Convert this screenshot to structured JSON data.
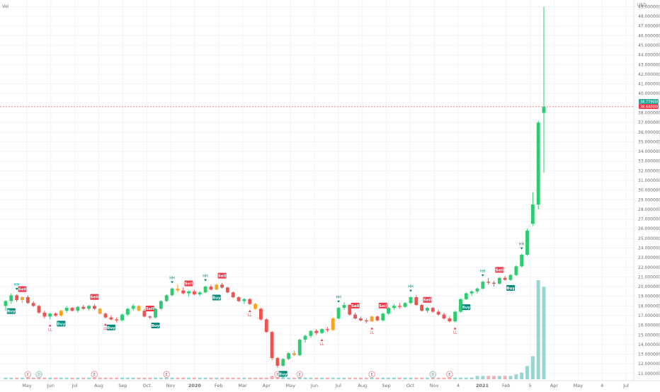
{
  "header": {
    "vol_label": "Vol"
  },
  "price_axis": {
    "currency": "USD",
    "labels": [
      "11.000000",
      "12.000000",
      "13.000000",
      "14.000000",
      "15.000000",
      "16.000000",
      "17.000000",
      "18.000000",
      "19.000000",
      "20.000000",
      "21.000000",
      "22.000000",
      "23.000000",
      "24.000000",
      "25.000000",
      "26.000000",
      "27.000000",
      "28.000000",
      "29.000000",
      "30.000000",
      "31.000000",
      "32.000000",
      "33.000000",
      "34.000000",
      "35.000000",
      "36.000000",
      "37.000000",
      "38.000000",
      "40.000000",
      "41.000000",
      "42.000000",
      "43.000000",
      "44.000000",
      "45.000000",
      "46.000000",
      "47.000000",
      "48.000000",
      "49.000000"
    ],
    "last_price_label": "38.640000",
    "last_price_top_label": "38.779000",
    "last_price_color": "#f23645",
    "top_price_color": "#26a69a"
  },
  "time_axis": {
    "labels": [
      "May",
      "Jun",
      "Jul",
      "Aug",
      "Sep",
      "Oct",
      "Nov",
      "2020",
      "Feb",
      "Mar",
      "Apr",
      "May",
      "Jun",
      "Jul",
      "Aug",
      "Sep",
      "Oct",
      "Nov",
      "4",
      "2021",
      "Feb",
      "5",
      "Apr",
      "May",
      "4",
      "Jul"
    ]
  },
  "colors": {
    "up": "#2ecc71",
    "down": "#ef5350",
    "neutral": "#f5a623",
    "volume": "#80cbc4",
    "volume_down": "#ef9a9a",
    "buy_badge": "#00897b",
    "sell_badge": "#f23645"
  },
  "signal_labels": {
    "buy": "Buy",
    "sell": "Sell",
    "hh": "HH",
    "ll": "LL",
    "e": "E",
    "d": "D"
  },
  "chart_data": {
    "type": "candlestick",
    "ylim": [
      10.4,
      49.4
    ],
    "grid": true,
    "candles": [
      [
        18.0,
        18.6,
        17.5,
        18.5
      ],
      [
        18.5,
        19.3,
        18.2,
        19.1
      ],
      [
        19.1,
        19.2,
        18.4,
        18.6
      ],
      [
        18.6,
        19.0,
        18.3,
        18.9
      ],
      [
        18.9,
        19.1,
        18.2,
        18.3
      ],
      [
        18.3,
        18.5,
        17.9,
        18.0
      ],
      [
        18.0,
        18.1,
        17.2,
        17.3
      ],
      [
        17.3,
        17.5,
        16.7,
        16.9
      ],
      [
        16.9,
        17.3,
        16.6,
        17.2
      ],
      [
        17.2,
        17.3,
        16.9,
        17.0
      ],
      [
        17.0,
        17.6,
        16.9,
        17.5
      ],
      [
        17.5,
        18.0,
        17.3,
        17.8
      ],
      [
        17.8,
        17.9,
        17.4,
        17.5
      ],
      [
        17.5,
        18.0,
        17.3,
        17.9
      ],
      [
        17.9,
        18.1,
        17.6,
        17.7
      ],
      [
        17.7,
        18.1,
        17.5,
        18.0
      ],
      [
        18.0,
        18.2,
        17.6,
        17.7
      ],
      [
        17.7,
        17.8,
        17.1,
        17.2
      ],
      [
        17.2,
        17.3,
        16.7,
        16.8
      ],
      [
        16.8,
        17.0,
        16.5,
        16.6
      ],
      [
        16.6,
        16.8,
        16.3,
        16.5
      ],
      [
        16.5,
        17.2,
        16.4,
        17.1
      ],
      [
        17.1,
        17.8,
        17.0,
        17.7
      ],
      [
        17.7,
        18.2,
        17.5,
        18.0
      ],
      [
        18.0,
        18.1,
        17.4,
        17.5
      ],
      [
        17.5,
        17.7,
        16.8,
        16.9
      ],
      [
        16.9,
        17.0,
        16.6,
        16.8
      ],
      [
        16.8,
        17.8,
        16.7,
        17.7
      ],
      [
        17.7,
        18.6,
        17.6,
        18.5
      ],
      [
        18.5,
        19.2,
        18.4,
        19.1
      ],
      [
        19.1,
        19.9,
        19.0,
        19.8
      ],
      [
        19.8,
        20.2,
        19.4,
        19.6
      ],
      [
        19.6,
        19.9,
        19.2,
        19.3
      ],
      [
        19.3,
        19.6,
        19.0,
        19.5
      ],
      [
        19.5,
        19.7,
        19.1,
        19.2
      ],
      [
        19.2,
        19.5,
        19.0,
        19.4
      ],
      [
        19.4,
        20.1,
        19.3,
        20.0
      ],
      [
        20.0,
        20.2,
        19.6,
        19.7
      ],
      [
        19.7,
        20.3,
        19.6,
        20.2
      ],
      [
        20.2,
        20.4,
        19.8,
        19.9
      ],
      [
        19.9,
        20.0,
        19.3,
        19.4
      ],
      [
        19.4,
        19.5,
        18.8,
        18.9
      ],
      [
        18.9,
        19.0,
        18.4,
        18.5
      ],
      [
        18.5,
        18.8,
        18.2,
        18.7
      ],
      [
        18.7,
        18.8,
        18.1,
        18.2
      ],
      [
        18.2,
        18.3,
        17.6,
        17.7
      ],
      [
        17.7,
        17.8,
        16.5,
        16.6
      ],
      [
        16.6,
        16.7,
        15.2,
        15.3
      ],
      [
        15.3,
        15.4,
        12.4,
        12.6
      ],
      [
        12.6,
        12.7,
        11.6,
        11.8
      ],
      [
        11.8,
        12.6,
        11.7,
        12.5
      ],
      [
        12.5,
        13.2,
        12.4,
        13.1
      ],
      [
        13.1,
        13.4,
        12.8,
        12.9
      ],
      [
        12.9,
        14.6,
        12.8,
        14.5
      ],
      [
        14.5,
        15.0,
        14.2,
        14.9
      ],
      [
        14.9,
        15.5,
        14.7,
        15.4
      ],
      [
        15.4,
        15.6,
        15.0,
        15.2
      ],
      [
        15.2,
        15.7,
        15.1,
        15.6
      ],
      [
        15.6,
        15.8,
        15.3,
        15.5
      ],
      [
        15.5,
        16.8,
        15.4,
        16.7
      ],
      [
        16.7,
        17.9,
        16.6,
        17.8
      ],
      [
        17.8,
        18.4,
        17.6,
        18.1
      ],
      [
        18.1,
        18.2,
        17.0,
        17.1
      ],
      [
        17.1,
        17.3,
        16.6,
        16.7
      ],
      [
        16.7,
        16.9,
        16.4,
        16.5
      ],
      [
        16.5,
        16.7,
        16.2,
        16.4
      ],
      [
        16.4,
        17.0,
        16.3,
        16.9
      ],
      [
        16.9,
        17.0,
        16.4,
        16.5
      ],
      [
        16.5,
        17.3,
        16.4,
        17.2
      ],
      [
        17.2,
        17.9,
        17.1,
        17.8
      ],
      [
        17.8,
        18.2,
        17.6,
        18.0
      ],
      [
        18.0,
        18.3,
        17.7,
        17.9
      ],
      [
        17.9,
        18.4,
        17.8,
        18.3
      ],
      [
        18.3,
        19.0,
        18.2,
        18.9
      ],
      [
        18.9,
        19.1,
        18.0,
        18.1
      ],
      [
        18.1,
        18.2,
        17.4,
        17.5
      ],
      [
        17.5,
        17.9,
        17.3,
        17.8
      ],
      [
        17.8,
        17.9,
        17.3,
        17.4
      ],
      [
        17.4,
        17.6,
        17.0,
        17.1
      ],
      [
        17.1,
        17.3,
        16.6,
        16.7
      ],
      [
        16.7,
        16.9,
        16.3,
        16.4
      ],
      [
        16.4,
        17.5,
        16.3,
        17.4
      ],
      [
        17.4,
        18.8,
        17.3,
        18.7
      ],
      [
        18.7,
        19.4,
        18.6,
        19.3
      ],
      [
        19.3,
        19.6,
        19.0,
        19.5
      ],
      [
        19.5,
        19.9,
        19.3,
        19.8
      ],
      [
        19.8,
        20.6,
        19.7,
        20.5
      ],
      [
        20.5,
        20.9,
        20.2,
        20.4
      ],
      [
        20.4,
        20.6,
        20.0,
        20.3
      ],
      [
        20.3,
        21.0,
        20.2,
        20.9
      ],
      [
        20.9,
        21.1,
        20.6,
        20.7
      ],
      [
        20.7,
        21.3,
        20.6,
        21.2
      ],
      [
        21.2,
        22.2,
        21.1,
        22.1
      ],
      [
        22.1,
        23.4,
        22.0,
        23.3
      ],
      [
        23.3,
        26.0,
        23.2,
        25.8
      ],
      [
        26.5,
        29.8,
        26.3,
        28.5
      ],
      [
        28.5,
        37.2,
        28.0,
        37.0
      ],
      [
        38.0,
        49.0,
        31.8,
        38.64
      ]
    ],
    "volume": [
      1,
      1,
      1,
      1,
      1,
      1,
      1,
      1,
      1,
      1,
      1,
      1,
      1,
      1,
      1,
      1,
      1,
      1,
      1,
      1,
      1,
      1,
      1,
      1,
      1,
      1,
      1,
      1,
      1,
      1,
      1,
      1,
      1,
      1,
      1,
      1,
      1,
      1,
      1,
      1,
      1,
      1,
      1,
      1,
      1,
      1,
      1,
      1,
      2,
      2,
      2,
      1,
      1,
      2,
      1,
      1,
      1,
      1,
      1,
      1,
      1,
      1,
      1,
      1,
      1,
      1,
      1,
      1,
      1,
      1,
      1,
      1,
      1,
      1,
      1,
      1,
      1,
      1,
      1,
      1,
      1,
      1,
      1,
      1,
      1,
      2,
      2,
      2,
      2,
      2,
      2,
      2,
      3,
      4,
      8,
      14,
      60,
      56
    ],
    "signals": [
      {
        "type": "buy",
        "index": 1
      },
      {
        "type": "sell",
        "index": 3
      },
      {
        "type": "hh",
        "index": 2
      },
      {
        "type": "ll",
        "index": 8
      },
      {
        "type": "buy",
        "index": 10
      },
      {
        "type": "sell",
        "index": 16
      },
      {
        "type": "ll",
        "index": 18
      },
      {
        "type": "buy",
        "index": 19
      },
      {
        "type": "sell",
        "index": 26
      },
      {
        "type": "buy",
        "index": 27
      },
      {
        "type": "hh",
        "index": 30
      },
      {
        "type": "sell",
        "index": 33
      },
      {
        "type": "hh",
        "index": 36
      },
      {
        "type": "sell",
        "index": 39
      },
      {
        "type": "buy",
        "index": 38
      },
      {
        "type": "ll",
        "index": 44
      },
      {
        "type": "buy",
        "index": 50
      },
      {
        "type": "ll",
        "index": 57
      },
      {
        "type": "hh",
        "index": 60
      },
      {
        "type": "sell",
        "index": 63
      },
      {
        "type": "ll",
        "index": 66
      },
      {
        "type": "sell",
        "index": 68
      },
      {
        "type": "hh",
        "index": 73
      },
      {
        "type": "sell",
        "index": 76
      },
      {
        "type": "ll",
        "index": 81
      },
      {
        "type": "buy",
        "index": 83
      },
      {
        "type": "hh",
        "index": 86
      },
      {
        "type": "sell",
        "index": 89
      },
      {
        "type": "buy",
        "index": 91
      },
      {
        "type": "hh",
        "index": 93
      }
    ],
    "events": [
      {
        "type": "e",
        "index": 4
      },
      {
        "type": "d",
        "index": 6
      },
      {
        "type": "e",
        "index": 16
      },
      {
        "type": "e",
        "index": 29
      },
      {
        "type": "e",
        "index": 49
      },
      {
        "type": "e",
        "index": 53
      },
      {
        "type": "e",
        "index": 66
      },
      {
        "type": "d",
        "index": 77
      },
      {
        "type": "e",
        "index": 80
      }
    ]
  }
}
